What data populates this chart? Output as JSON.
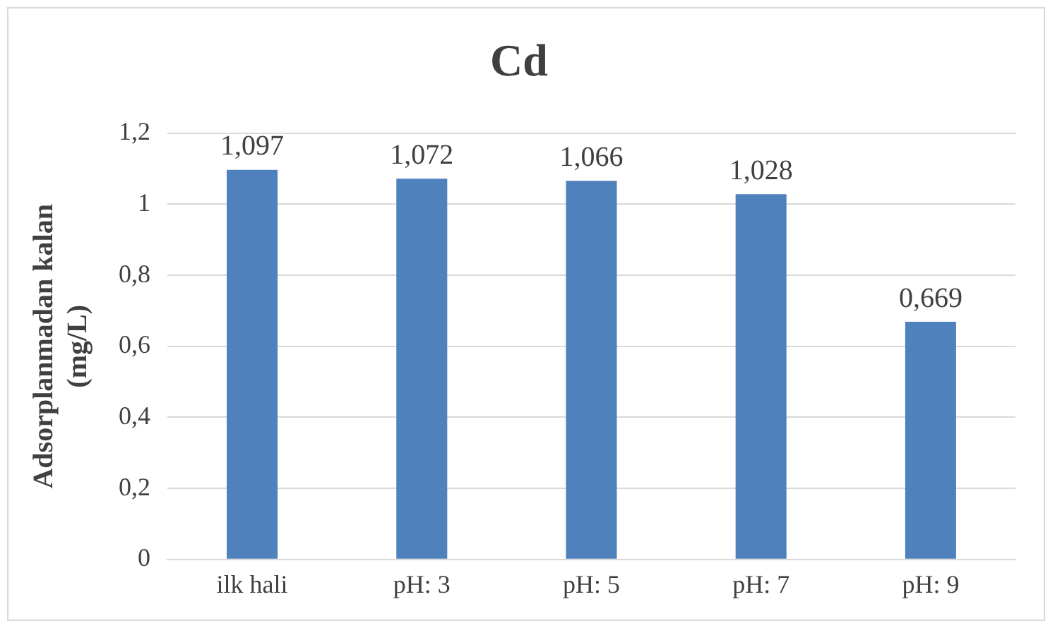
{
  "chart_data": {
    "type": "bar",
    "title": "Cd",
    "ylabel": "Adsorplanmadan kalan (mg/L)",
    "categories": [
      "ilk hali",
      "pH: 3",
      "pH: 5",
      "pH: 7",
      "pH: 9"
    ],
    "values": [
      1.097,
      1.072,
      1.066,
      1.028,
      0.669
    ],
    "value_labels": [
      "1,097",
      "1,072",
      "1,066",
      "1,028",
      "0,669"
    ],
    "color": "#4f81bd",
    "ylim": [
      0,
      1.2
    ],
    "yticks": [
      0,
      {
        "value": 0.2,
        "label": "0,2"
      },
      {
        "value": 0.4,
        "label": "0,4"
      },
      {
        "value": 0.6,
        "label": "0,6"
      },
      {
        "value": 0.8,
        "label": "0,8"
      },
      1,
      {
        "value": 1.2,
        "label": "1,2"
      }
    ],
    "grid": "y"
  }
}
